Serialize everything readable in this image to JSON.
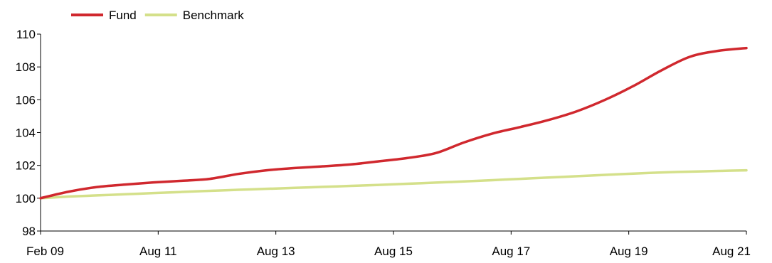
{
  "chart_data": {
    "type": "line",
    "x_tick_labels": [
      "Feb 09",
      "Aug 11",
      "Aug 13",
      "Aug 15",
      "Aug 17",
      "Aug 19",
      "Aug 21"
    ],
    "x": [
      "2009-02",
      "2009-08",
      "2010-02",
      "2010-08",
      "2011-02",
      "2011-08",
      "2012-02",
      "2012-08",
      "2013-02",
      "2013-08",
      "2014-02",
      "2014-08",
      "2015-02",
      "2015-08",
      "2016-02",
      "2016-08",
      "2017-02",
      "2017-08",
      "2018-02",
      "2018-08",
      "2019-02",
      "2019-08",
      "2020-02",
      "2020-08",
      "2021-02",
      "2021-08"
    ],
    "series": [
      {
        "name": "Fund",
        "color": "#d0282e",
        "values": [
          100.0,
          100.4,
          100.68,
          100.83,
          100.96,
          101.06,
          101.18,
          101.48,
          101.7,
          101.84,
          101.94,
          102.06,
          102.25,
          102.45,
          102.75,
          103.4,
          103.94,
          104.34,
          104.77,
          105.3,
          106.0,
          106.84,
          107.8,
          108.62,
          108.98,
          109.15
        ]
      },
      {
        "name": "Benchmark",
        "color": "#d4e08a",
        "values": [
          100.0,
          100.1,
          100.17,
          100.24,
          100.31,
          100.38,
          100.45,
          100.51,
          100.57,
          100.63,
          100.69,
          100.75,
          100.81,
          100.88,
          100.95,
          101.02,
          101.1,
          101.18,
          101.26,
          101.34,
          101.42,
          101.5,
          101.57,
          101.62,
          101.66,
          101.7
        ]
      }
    ],
    "y_ticks": [
      98,
      100,
      102,
      104,
      106,
      108,
      110
    ],
    "ylim": [
      98,
      110
    ],
    "title": "",
    "xlabel": "",
    "ylabel": "",
    "grid": false,
    "legend_position": "top-left"
  }
}
